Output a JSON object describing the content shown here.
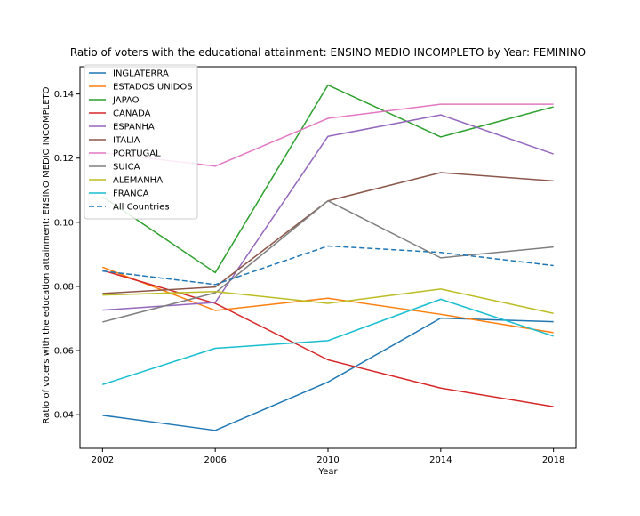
{
  "chart_data": {
    "type": "line",
    "title": "Ratio of voters with the educational attainment: ENSINO MEDIO INCOMPLETO by Year: FEMININO",
    "xlabel": "Year",
    "ylabel": "Ratio of voters with the education attainment: ENSINO MEDIO INCOMPLETO",
    "x": [
      2002,
      2006,
      2010,
      2014,
      2018
    ],
    "x_ticks": [
      "2002",
      "2006",
      "2010",
      "2014",
      "2018"
    ],
    "y_ticks": [
      "0.04",
      "0.06",
      "0.08",
      "0.10",
      "0.12",
      "0.14"
    ],
    "xlim": [
      2001.2,
      2018.8
    ],
    "ylim": [
      0.0295,
      0.1485
    ],
    "grid": false,
    "legend_position": "upper-left",
    "series": [
      {
        "name": "INGLATERRA",
        "color": "#1f77b4",
        "dash": false,
        "values": [
          0.0398,
          0.0351,
          0.0502,
          0.0701,
          0.069
        ]
      },
      {
        "name": "ESTADOS UNIDOS",
        "color": "#ff7f0e",
        "dash": false,
        "values": [
          0.086,
          0.0725,
          0.0763,
          0.0713,
          0.0656
        ]
      },
      {
        "name": "JAPAO",
        "color": "#2ca02c",
        "dash": false,
        "values": [
          0.108,
          0.0843,
          0.1428,
          0.1266,
          0.136
        ]
      },
      {
        "name": "CANADA",
        "color": "#d62728",
        "dash": false,
        "values": [
          0.085,
          0.0747,
          0.0571,
          0.0483,
          0.0425
        ]
      },
      {
        "name": "ESPANHA",
        "color": "#9467bd",
        "dash": false,
        "values": [
          0.0726,
          0.075,
          0.1268,
          0.1335,
          0.1213
        ]
      },
      {
        "name": "ITALIA",
        "color": "#8c564b",
        "dash": false,
        "values": [
          0.0778,
          0.0798,
          0.1067,
          0.1155,
          0.1129
        ]
      },
      {
        "name": "PORTUGAL",
        "color": "#e377c2",
        "dash": false,
        "values": [
          0.1217,
          0.1175,
          0.1324,
          0.1368,
          0.1368
        ]
      },
      {
        "name": "SUICA",
        "color": "#7f7f7f",
        "dash": false,
        "values": [
          0.0689,
          0.078,
          0.1067,
          0.0889,
          0.0923
        ]
      },
      {
        "name": "ALEMANHA",
        "color": "#bcbd22",
        "dash": false,
        "values": [
          0.0773,
          0.0784,
          0.0747,
          0.0792,
          0.0716
        ]
      },
      {
        "name": "FRANCA",
        "color": "#17becf",
        "dash": false,
        "values": [
          0.0494,
          0.0607,
          0.0631,
          0.076,
          0.0645
        ]
      },
      {
        "name": "All Countries",
        "color": "#1f77b4",
        "dash": true,
        "values": [
          0.0848,
          0.0806,
          0.0926,
          0.0906,
          0.0865
        ]
      }
    ]
  }
}
